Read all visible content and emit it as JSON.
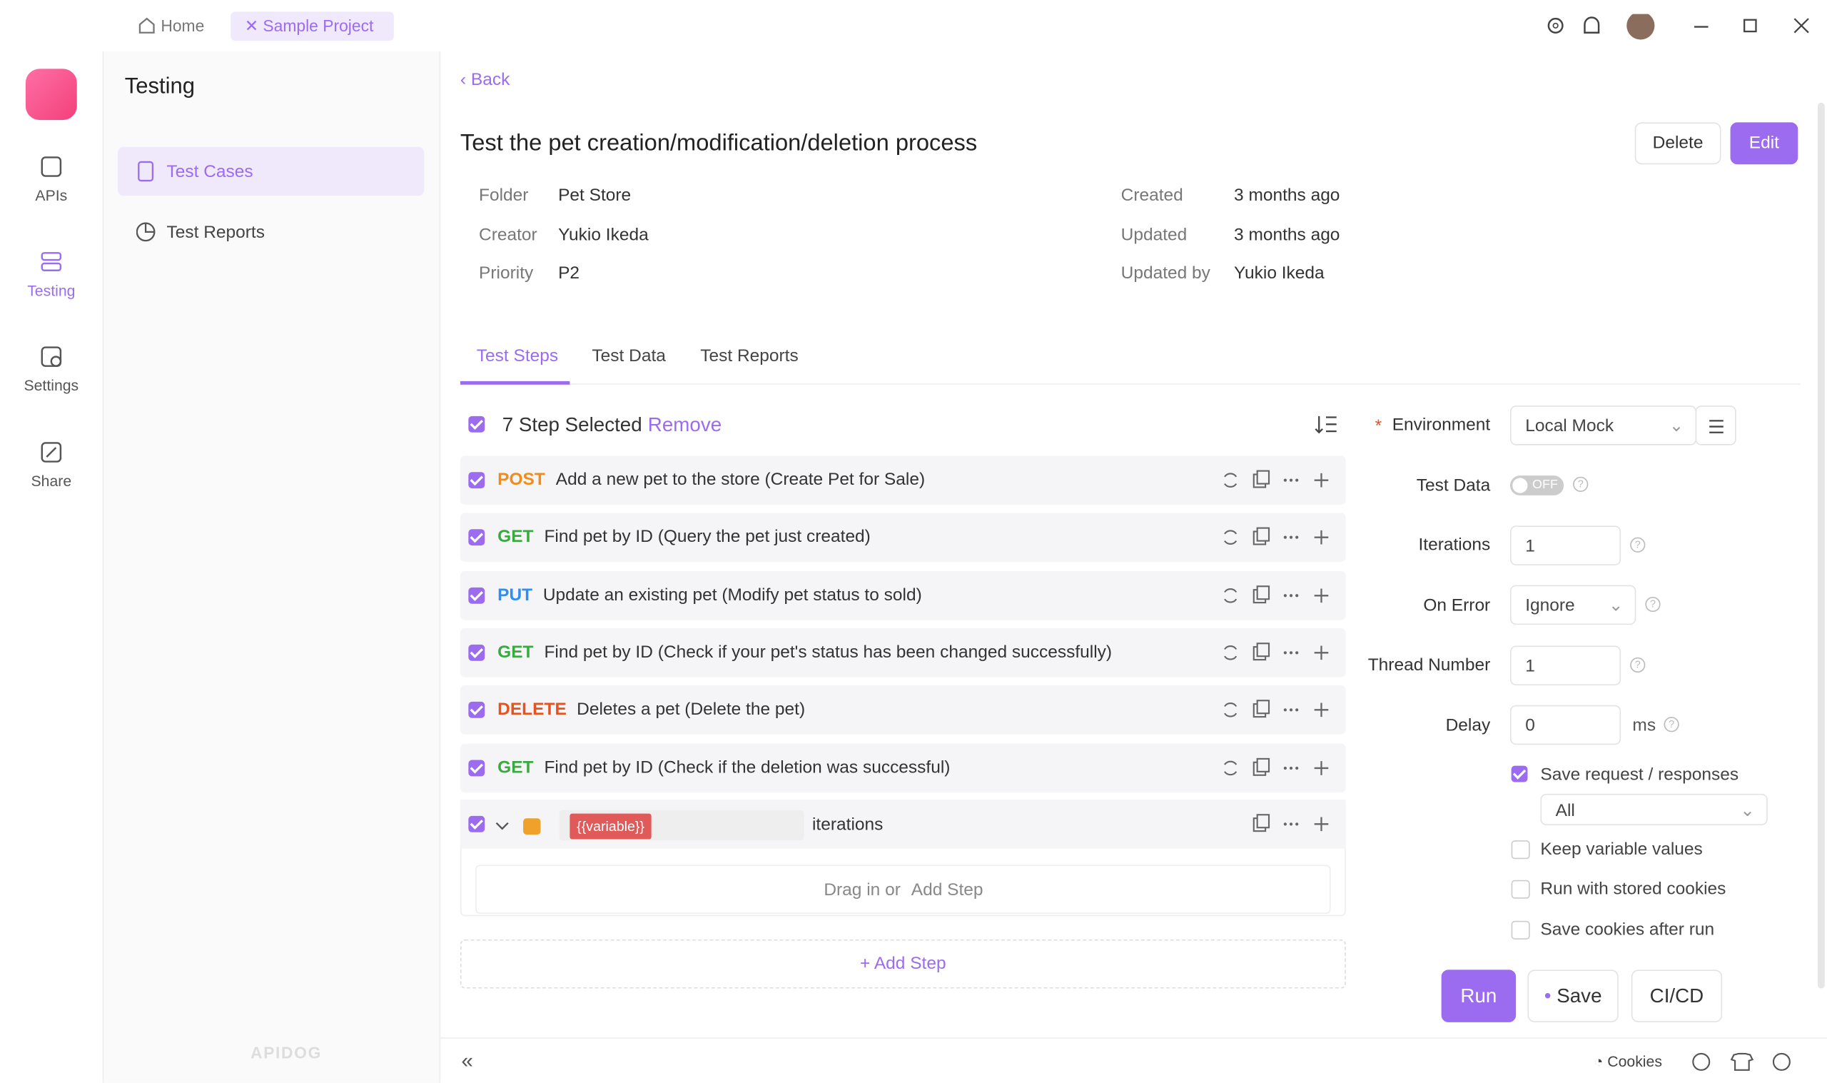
{
  "tabs": {
    "home": "Home",
    "project": "Sample Project"
  },
  "sidebar": [
    "APIs",
    "Testing",
    "Settings",
    "Share"
  ],
  "panel": {
    "title": "Testing",
    "items": [
      "Test Cases",
      "Test Reports"
    ],
    "brand": "APIDOG"
  },
  "header": {
    "back": "Back",
    "title": "Test the pet creation/modification/deletion process",
    "delete": "Delete",
    "edit": "Edit"
  },
  "meta": [
    {
      "label": "Folder",
      "value": "Pet Store"
    },
    {
      "label": "Creator",
      "value": "Yukio Ikeda"
    },
    {
      "label": "Priority",
      "value": "P2"
    },
    {
      "label": "Created",
      "value": "3 months ago"
    },
    {
      "label": "Updated",
      "value": "3 months ago"
    },
    {
      "label": "Updated by",
      "value": "Yukio Ikeda"
    }
  ],
  "content_tabs": [
    "Test Steps",
    "Test Data",
    "Test Reports"
  ],
  "selection": {
    "text": "7 Step Selected",
    "remove": "Remove"
  },
  "steps": [
    {
      "method": "POST",
      "description": "Add a new pet to the store (Create Pet for Sale)"
    },
    {
      "method": "GET",
      "description": "Find pet by ID (Query the pet just created)"
    },
    {
      "method": "PUT",
      "description": "Update an existing pet (Modify pet status to sold)"
    },
    {
      "method": "GET",
      "description": "Find pet by ID (Check if your pet's status has been changed successfully)"
    },
    {
      "method": "DELETE",
      "description": "Deletes a pet (Delete the pet)"
    },
    {
      "method": "GET",
      "description": "Find pet by ID (Check if the deletion was successful)"
    }
  ],
  "loop": {
    "variable": "{{variable}}",
    "suffix": "iterations",
    "drop": "Drag in or",
    "drop_add": "Add Step"
  },
  "add_step": "Add Step",
  "settings": {
    "environment_label": "Environment",
    "environment": "Local Mock",
    "test_data_label": "Test Data",
    "test_data": "OFF",
    "iterations_label": "Iterations",
    "iterations": "1",
    "on_error_label": "On Error",
    "on_error": "Ignore",
    "thread_label": "Thread Number",
    "thread": "1",
    "delay_label": "Delay",
    "delay": "0",
    "delay_unit": "ms",
    "options": [
      {
        "label": "Save request / responses",
        "checked": true
      },
      {
        "label": "Keep variable values",
        "checked": false
      },
      {
        "label": "Run with stored cookies",
        "checked": false
      },
      {
        "label": "Save cookies after run",
        "checked": false
      }
    ],
    "save_scope": "All",
    "run": "Run",
    "save": "Save",
    "cicd": "CI/CD"
  },
  "footer": {
    "cookies": "Cookies"
  }
}
